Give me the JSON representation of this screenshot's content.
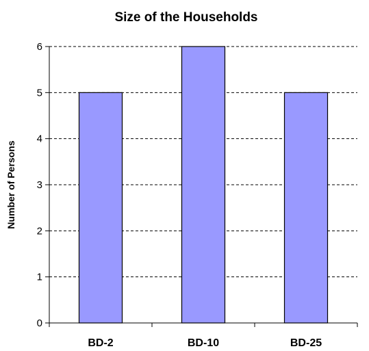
{
  "chart_data": {
    "type": "bar",
    "title": "Size of the Households",
    "xlabel": "",
    "ylabel": "Number of Persons",
    "categories": [
      "BD-2",
      "BD-10",
      "BD-25"
    ],
    "values": [
      5,
      6,
      5
    ],
    "ylim": [
      0,
      6
    ],
    "yticks": [
      0,
      1,
      2,
      3,
      4,
      5,
      6
    ],
    "grid": true,
    "legend": "none",
    "colors": {
      "bar_fill": "#9999ff",
      "bar_stroke": "#000000",
      "grid": "#000000",
      "axis": "#000000"
    }
  }
}
